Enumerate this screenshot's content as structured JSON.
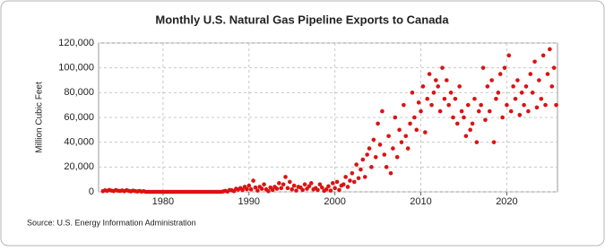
{
  "chart_data": {
    "type": "scatter",
    "title": "Monthly U.S. Natural Gas Pipeline Exports to Canada",
    "y_label": "Million Cubic Feet",
    "source": "Source: U.S. Energy Information Administration",
    "color": "#dd1111",
    "grid": true,
    "xlim": [
      1972.5,
      2025.9
    ],
    "xticks": [
      1980,
      1990,
      2000,
      2010,
      2020
    ],
    "ylim": [
      0,
      120000
    ],
    "yticks": [
      0,
      {
        "value": 20000,
        "label": "20,000"
      },
      {
        "value": 40000,
        "label": "40,000"
      },
      {
        "value": 60000,
        "label": "60,000"
      },
      {
        "value": 80000,
        "label": "80,000"
      },
      {
        "value": 100000,
        "label": "100,000"
      },
      {
        "value": 120000,
        "label": "120,000"
      }
    ],
    "x": [
      1973,
      1973.25,
      1973.5,
      1973.75,
      1974,
      1974.25,
      1974.5,
      1974.75,
      1975,
      1975.25,
      1975.5,
      1975.75,
      1976,
      1976.25,
      1976.5,
      1976.75,
      1977,
      1977.25,
      1977.5,
      1977.75,
      1978,
      1978.25,
      1978.5,
      1978.75,
      1979,
      1979.25,
      1979.5,
      1979.75,
      1980,
      1980.25,
      1980.5,
      1980.75,
      1981,
      1981.25,
      1981.5,
      1981.75,
      1982,
      1982.25,
      1982.5,
      1982.75,
      1983,
      1983.25,
      1983.5,
      1983.75,
      1984,
      1984.25,
      1984.5,
      1984.75,
      1985,
      1985.25,
      1985.5,
      1985.75,
      1986,
      1986.25,
      1986.5,
      1986.75,
      1987,
      1987.25,
      1987.5,
      1987.75,
      1988,
      1988.25,
      1988.5,
      1988.75,
      1989,
      1989.25,
      1989.5,
      1989.75,
      1990,
      1990.25,
      1990.5,
      1990.75,
      1991,
      1991.25,
      1991.5,
      1991.75,
      1992,
      1992.25,
      1992.5,
      1992.75,
      1993,
      1993.25,
      1993.5,
      1993.75,
      1994,
      1994.25,
      1994.5,
      1994.75,
      1995,
      1995.25,
      1995.5,
      1995.75,
      1996,
      1996.25,
      1996.5,
      1996.75,
      1997,
      1997.25,
      1997.5,
      1997.75,
      1998,
      1998.25,
      1998.5,
      1998.75,
      1999,
      1999.25,
      1999.5,
      1999.75,
      2000,
      2000.25,
      2000.5,
      2000.75,
      2001,
      2001.25,
      2001.5,
      2001.75,
      2002,
      2002.25,
      2002.5,
      2002.75,
      2003,
      2003.25,
      2003.5,
      2003.75,
      2004,
      2004.25,
      2004.5,
      2004.75,
      2005,
      2005.25,
      2005.5,
      2005.75,
      2006,
      2006.25,
      2006.5,
      2006.75,
      2007,
      2007.25,
      2007.5,
      2007.75,
      2008,
      2008.25,
      2008.5,
      2008.75,
      2009,
      2009.25,
      2009.5,
      2009.75,
      2010,
      2010.25,
      2010.5,
      2010.75,
      2011,
      2011.25,
      2011.5,
      2011.75,
      2012,
      2012.25,
      2012.5,
      2012.75,
      2013,
      2013.25,
      2013.5,
      2013.75,
      2014,
      2014.25,
      2014.5,
      2014.75,
      2015,
      2015.25,
      2015.5,
      2015.75,
      2016,
      2016.25,
      2016.5,
      2016.75,
      2017,
      2017.25,
      2017.5,
      2017.75,
      2018,
      2018.25,
      2018.5,
      2018.75,
      2019,
      2019.25,
      2019.5,
      2019.75,
      2020,
      2020.25,
      2020.5,
      2020.75,
      2021,
      2021.25,
      2021.5,
      2021.75,
      2022,
      2022.25,
      2022.5,
      2022.75,
      2023,
      2023.25,
      2023.5,
      2023.75,
      2024,
      2024.25,
      2024.5,
      2024.75,
      2025,
      2025.25,
      2025.5,
      2025.75
    ],
    "values": [
      500,
      1200,
      800,
      1500,
      1000,
      600,
      1400,
      900,
      700,
      1100,
      500,
      1300,
      800,
      400,
      1000,
      600,
      300,
      700,
      200,
      500,
      0,
      0,
      0,
      0,
      0,
      0,
      0,
      0,
      0,
      0,
      0,
      0,
      0,
      0,
      0,
      0,
      0,
      0,
      0,
      0,
      0,
      0,
      0,
      0,
      0,
      0,
      0,
      0,
      0,
      0,
      0,
      0,
      0,
      0,
      0,
      0,
      300,
      800,
      200,
      1500,
      1200,
      500,
      2500,
      1800,
      3000,
      1500,
      4000,
      2200,
      5000,
      2000,
      9000,
      3500,
      1000,
      4000,
      2500,
      6000,
      2000,
      500,
      3500,
      1500,
      4000,
      2500,
      7000,
      3000,
      6000,
      12000,
      3000,
      8000,
      2000,
      5000,
      1000,
      4000,
      3500,
      1500,
      6000,
      2500,
      4500,
      7000,
      2000,
      3000,
      1500,
      6000,
      3500,
      800,
      2000,
      4500,
      1000,
      7000,
      3000,
      8000,
      1500,
      5000,
      6000,
      12000,
      4000,
      9000,
      15000,
      8000,
      22000,
      11000,
      18000,
      26000,
      12000,
      30000,
      35000,
      20000,
      42000,
      28000,
      55000,
      38000,
      65000,
      30000,
      20000,
      45000,
      15000,
      35000,
      60000,
      28000,
      50000,
      40000,
      70000,
      45000,
      35000,
      55000,
      80000,
      60000,
      50000,
      72000,
      65000,
      85000,
      48000,
      75000,
      95000,
      70000,
      80000,
      90000,
      85000,
      65000,
      100000,
      75000,
      90000,
      70000,
      80000,
      60000,
      75000,
      55000,
      85000,
      65000,
      60000,
      45000,
      70000,
      50000,
      55000,
      75000,
      40000,
      65000,
      70000,
      100000,
      58000,
      85000,
      65000,
      90000,
      40000,
      75000,
      80000,
      95000,
      60000,
      100000,
      70000,
      110000,
      65000,
      85000,
      75000,
      90000,
      62000,
      80000,
      70000,
      85000,
      65000,
      95000,
      80000,
      105000,
      68000,
      90000,
      75000,
      110000,
      70000,
      95000,
      115000,
      85000,
      100000,
      70000
    ]
  }
}
